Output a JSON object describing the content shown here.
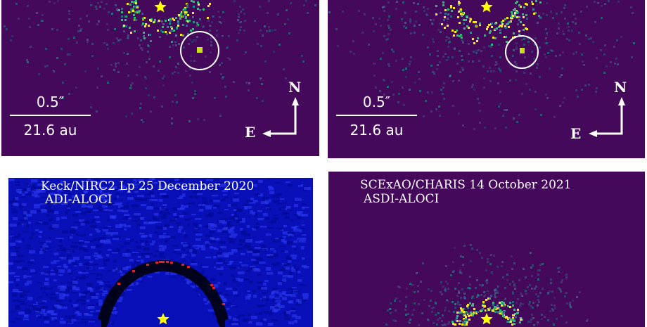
{
  "panels": [
    {
      "id": "top-left",
      "scale_top": "0.5″",
      "scale_bottom": "21.6 au",
      "north": "N",
      "east": "E",
      "colormap": "viridis"
    },
    {
      "id": "top-right",
      "scale_top": "0.5″",
      "scale_bottom": "21.6 au",
      "north": "N",
      "east": "E",
      "colormap": "viridis"
    },
    {
      "id": "bottom-left",
      "line1": "Keck/NIRC2 Lp 25 December 2020",
      "line2": "ADI-ALOCI",
      "colormap": "blue-red"
    },
    {
      "id": "bottom-right",
      "line1": "SCExAO/CHARIS 14 October 2021",
      "line2": "ASDI-ALOCI",
      "colormap": "viridis"
    }
  ],
  "colors": {
    "viridis_bg": "#44095a",
    "star": "#ffff00",
    "nirc2_bg": "#0a10b8",
    "circle": "#ffffff"
  }
}
